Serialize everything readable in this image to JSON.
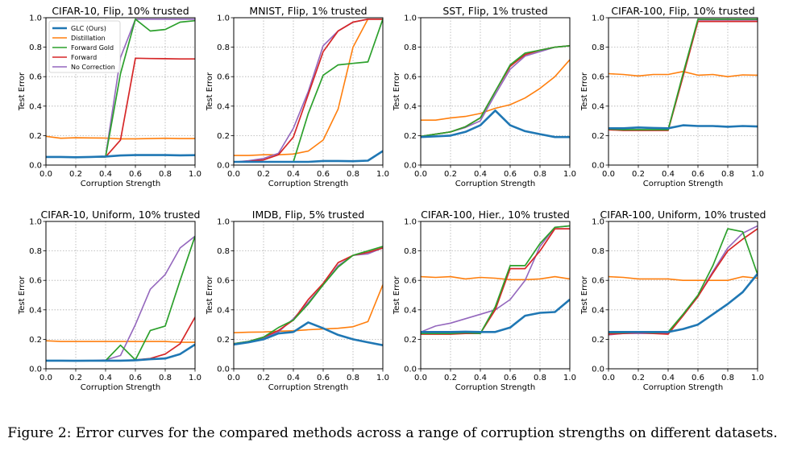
{
  "caption": "Figure 2: Error curves for the compared methods across a range of corruption strengths on different datasets.",
  "colors": {
    "GLC": "#1f77b4",
    "Distillation": "#ff7f0e",
    "ForwardGold": "#2ca02c",
    "Forward": "#d62728",
    "NoCorrection": "#9467bd"
  },
  "chart_data": [
    {
      "type": "line",
      "title": "CIFAR-10, Flip, 10% trusted",
      "xlabel": "Corruption Strength",
      "ylabel": "Test Error",
      "xlim": [
        0,
        1
      ],
      "ylim": [
        0,
        1
      ],
      "grid": true,
      "legend": "top-left",
      "x": [
        0,
        0.1,
        0.2,
        0.3,
        0.4,
        0.5,
        0.6,
        0.7,
        0.8,
        0.9,
        1.0
      ],
      "series": [
        {
          "name": "GLC (Ours)",
          "values": [
            0.055,
            0.055,
            0.053,
            0.055,
            0.058,
            0.065,
            0.068,
            0.068,
            0.068,
            0.066,
            0.067
          ]
        },
        {
          "name": "Distillation",
          "values": [
            0.195,
            0.182,
            0.185,
            0.184,
            0.183,
            0.178,
            0.178,
            0.18,
            0.182,
            0.18,
            0.18
          ]
        },
        {
          "name": "Forward Gold",
          "values": [
            0.055,
            0.055,
            0.054,
            0.055,
            0.055,
            0.62,
            0.99,
            0.91,
            0.92,
            0.97,
            0.98
          ]
        },
        {
          "name": "Forward",
          "values": [
            0.055,
            0.055,
            0.054,
            0.055,
            0.055,
            0.17,
            0.725,
            0.723,
            0.722,
            0.72,
            0.72
          ]
        },
        {
          "name": "No Correction",
          "values": [
            0.055,
            0.055,
            0.054,
            0.055,
            0.06,
            0.73,
            0.99,
            0.99,
            0.99,
            0.99,
            0.99
          ]
        }
      ]
    },
    {
      "type": "line",
      "title": "MNIST, Flip, 1% trusted",
      "xlabel": "Corruption Strength",
      "ylabel": "Test Error",
      "xlim": [
        0,
        1
      ],
      "ylim": [
        0,
        1
      ],
      "grid": true,
      "x": [
        0,
        0.1,
        0.2,
        0.3,
        0.4,
        0.5,
        0.6,
        0.7,
        0.8,
        0.9,
        1.0
      ],
      "series": [
        {
          "name": "GLC (Ours)",
          "values": [
            0.022,
            0.022,
            0.022,
            0.022,
            0.022,
            0.022,
            0.028,
            0.028,
            0.026,
            0.03,
            0.095
          ]
        },
        {
          "name": "Distillation",
          "values": [
            0.065,
            0.065,
            0.07,
            0.07,
            0.075,
            0.095,
            0.17,
            0.38,
            0.8,
            0.99,
            0.99
          ]
        },
        {
          "name": "Forward Gold",
          "values": [
            0.022,
            0.022,
            0.022,
            0.022,
            0.022,
            0.35,
            0.61,
            0.68,
            0.69,
            0.7,
            0.99
          ]
        },
        {
          "name": "Forward",
          "values": [
            0.02,
            0.025,
            0.035,
            0.07,
            0.19,
            0.48,
            0.77,
            0.91,
            0.97,
            0.99,
            0.99
          ]
        },
        {
          "name": "No Correction",
          "values": [
            0.02,
            0.03,
            0.045,
            0.08,
            0.25,
            0.5,
            0.81,
            0.91,
            0.97,
            0.99,
            0.99
          ]
        }
      ]
    },
    {
      "type": "line",
      "title": "SST, Flip, 1% trusted",
      "xlabel": "Corruption Strength",
      "ylabel": "Test Error",
      "xlim": [
        0,
        1
      ],
      "ylim": [
        0,
        1
      ],
      "grid": true,
      "x": [
        0,
        0.1,
        0.2,
        0.3,
        0.4,
        0.5,
        0.6,
        0.7,
        0.8,
        0.9,
        1.0
      ],
      "series": [
        {
          "name": "GLC (Ours)",
          "values": [
            0.19,
            0.195,
            0.2,
            0.225,
            0.27,
            0.37,
            0.27,
            0.23,
            0.21,
            0.19,
            0.19
          ]
        },
        {
          "name": "Distillation",
          "values": [
            0.305,
            0.305,
            0.32,
            0.33,
            0.35,
            0.385,
            0.41,
            0.455,
            0.52,
            0.6,
            0.715
          ]
        },
        {
          "name": "Forward Gold",
          "values": [
            0.195,
            0.21,
            0.225,
            0.26,
            0.32,
            0.5,
            0.68,
            0.76,
            0.78,
            0.8,
            0.81
          ]
        },
        {
          "name": "Forward",
          "values": [
            0.195,
            0.21,
            0.225,
            0.26,
            0.32,
            0.5,
            0.67,
            0.75,
            0.78,
            0.8,
            0.81
          ]
        },
        {
          "name": "No Correction",
          "values": [
            0.195,
            0.21,
            0.225,
            0.255,
            0.3,
            0.48,
            0.65,
            0.74,
            0.77,
            0.8,
            0.81
          ]
        }
      ]
    },
    {
      "type": "line",
      "title": "CIFAR-100, Flip, 10% trusted",
      "xlabel": "Corruption Strength",
      "ylabel": "Test Error",
      "xlim": [
        0,
        1
      ],
      "ylim": [
        0,
        1
      ],
      "grid": true,
      "x": [
        0,
        0.1,
        0.2,
        0.3,
        0.4,
        0.5,
        0.6,
        0.7,
        0.8,
        0.9,
        1.0
      ],
      "series": [
        {
          "name": "GLC (Ours)",
          "values": [
            0.25,
            0.25,
            0.255,
            0.252,
            0.25,
            0.27,
            0.265,
            0.265,
            0.26,
            0.265,
            0.262
          ]
        },
        {
          "name": "Distillation",
          "values": [
            0.62,
            0.615,
            0.605,
            0.615,
            0.615,
            0.635,
            0.61,
            0.615,
            0.6,
            0.612,
            0.61
          ]
        },
        {
          "name": "Forward Gold",
          "values": [
            0.245,
            0.24,
            0.24,
            0.24,
            0.24,
            0.62,
            0.99,
            0.99,
            0.99,
            0.99,
            0.99
          ]
        },
        {
          "name": "Forward",
          "values": [
            0.24,
            0.235,
            0.235,
            0.235,
            0.235,
            0.6,
            0.975,
            0.975,
            0.975,
            0.975,
            0.975
          ]
        },
        {
          "name": "No Correction",
          "values": [
            0.24,
            0.24,
            0.24,
            0.24,
            0.24,
            0.61,
            0.985,
            0.985,
            0.985,
            0.985,
            0.985
          ]
        }
      ]
    },
    {
      "type": "line",
      "title": "CIFAR-10, Uniform, 10% trusted",
      "xlabel": "Corruption Strength",
      "ylabel": "Test Error",
      "xlim": [
        0,
        1
      ],
      "ylim": [
        0,
        1
      ],
      "grid": true,
      "x": [
        0,
        0.1,
        0.2,
        0.3,
        0.4,
        0.5,
        0.6,
        0.7,
        0.8,
        0.9,
        1.0
      ],
      "series": [
        {
          "name": "GLC (Ours)",
          "values": [
            0.055,
            0.055,
            0.054,
            0.055,
            0.055,
            0.055,
            0.058,
            0.065,
            0.07,
            0.1,
            0.165
          ]
        },
        {
          "name": "Distillation",
          "values": [
            0.19,
            0.185,
            0.185,
            0.185,
            0.185,
            0.185,
            0.185,
            0.185,
            0.185,
            0.18,
            0.18
          ]
        },
        {
          "name": "Forward Gold",
          "values": [
            0.055,
            0.055,
            0.054,
            0.055,
            0.055,
            0.16,
            0.06,
            0.26,
            0.29,
            0.6,
            0.9
          ]
        },
        {
          "name": "Forward",
          "values": [
            0.055,
            0.055,
            0.054,
            0.055,
            0.055,
            0.055,
            0.06,
            0.07,
            0.1,
            0.17,
            0.35
          ]
        },
        {
          "name": "No Correction",
          "values": [
            0.055,
            0.055,
            0.054,
            0.055,
            0.06,
            0.09,
            0.3,
            0.54,
            0.64,
            0.82,
            0.9
          ]
        }
      ]
    },
    {
      "type": "line",
      "title": "IMDB, Flip, 5% trusted",
      "xlabel": "Corruption Strength",
      "ylabel": "Test Error",
      "xlim": [
        0,
        1
      ],
      "ylim": [
        0,
        1
      ],
      "grid": true,
      "x": [
        0,
        0.1,
        0.2,
        0.3,
        0.4,
        0.5,
        0.6,
        0.7,
        0.8,
        0.9,
        1.0
      ],
      "series": [
        {
          "name": "GLC (Ours)",
          "values": [
            0.165,
            0.18,
            0.2,
            0.24,
            0.25,
            0.315,
            0.275,
            0.23,
            0.2,
            0.18,
            0.16
          ]
        },
        {
          "name": "Distillation",
          "values": [
            0.245,
            0.248,
            0.25,
            0.255,
            0.258,
            0.265,
            0.27,
            0.275,
            0.285,
            0.32,
            0.57
          ]
        },
        {
          "name": "Forward Gold",
          "values": [
            0.17,
            0.185,
            0.215,
            0.28,
            0.33,
            0.44,
            0.57,
            0.69,
            0.77,
            0.8,
            0.83
          ]
        },
        {
          "name": "Forward",
          "values": [
            0.17,
            0.185,
            0.215,
            0.26,
            0.33,
            0.47,
            0.58,
            0.72,
            0.77,
            0.79,
            0.82
          ]
        },
        {
          "name": "No Correction",
          "values": [
            0.17,
            0.185,
            0.21,
            0.25,
            0.34,
            0.45,
            0.57,
            0.7,
            0.77,
            0.78,
            0.82
          ]
        }
      ]
    },
    {
      "type": "line",
      "title": "CIFAR-100, Hier., 10% trusted",
      "xlabel": "Corruption Strength",
      "ylabel": "Test Error",
      "xlim": [
        0,
        1
      ],
      "ylim": [
        0,
        1
      ],
      "grid": true,
      "x": [
        0,
        0.1,
        0.2,
        0.3,
        0.4,
        0.5,
        0.6,
        0.7,
        0.8,
        0.9,
        1.0
      ],
      "series": [
        {
          "name": "GLC (Ours)",
          "values": [
            0.25,
            0.25,
            0.25,
            0.252,
            0.25,
            0.25,
            0.28,
            0.36,
            0.38,
            0.385,
            0.47
          ]
        },
        {
          "name": "Distillation",
          "values": [
            0.625,
            0.62,
            0.625,
            0.61,
            0.62,
            0.615,
            0.605,
            0.605,
            0.61,
            0.625,
            0.61
          ]
        },
        {
          "name": "Forward Gold",
          "values": [
            0.24,
            0.24,
            0.24,
            0.245,
            0.24,
            0.42,
            0.7,
            0.7,
            0.85,
            0.96,
            0.97
          ]
        },
        {
          "name": "Forward",
          "values": [
            0.235,
            0.235,
            0.235,
            0.24,
            0.24,
            0.4,
            0.68,
            0.68,
            0.8,
            0.95,
            0.95
          ]
        },
        {
          "name": "No Correction",
          "values": [
            0.25,
            0.29,
            0.31,
            0.34,
            0.37,
            0.4,
            0.47,
            0.6,
            0.83,
            0.96,
            0.97
          ]
        }
      ]
    },
    {
      "type": "line",
      "title": "CIFAR-100, Uniform, 10% trusted",
      "xlabel": "Corruption Strength",
      "ylabel": "Test Error",
      "xlim": [
        0,
        1
      ],
      "ylim": [
        0,
        1
      ],
      "grid": true,
      "x": [
        0,
        0.1,
        0.2,
        0.3,
        0.4,
        0.5,
        0.6,
        0.7,
        0.8,
        0.9,
        1.0
      ],
      "series": [
        {
          "name": "GLC (Ours)",
          "values": [
            0.25,
            0.25,
            0.25,
            0.25,
            0.25,
            0.27,
            0.3,
            0.37,
            0.44,
            0.52,
            0.645
          ]
        },
        {
          "name": "Distillation",
          "values": [
            0.625,
            0.62,
            0.61,
            0.61,
            0.61,
            0.6,
            0.6,
            0.6,
            0.6,
            0.625,
            0.615
          ]
        },
        {
          "name": "Forward Gold",
          "values": [
            0.245,
            0.245,
            0.25,
            0.245,
            0.25,
            0.37,
            0.5,
            0.7,
            0.95,
            0.93,
            0.64
          ]
        },
        {
          "name": "Forward",
          "values": [
            0.235,
            0.24,
            0.245,
            0.24,
            0.235,
            0.36,
            0.49,
            0.65,
            0.8,
            0.88,
            0.95
          ]
        },
        {
          "name": "No Correction",
          "values": [
            0.23,
            0.24,
            0.24,
            0.24,
            0.24,
            0.36,
            0.49,
            0.66,
            0.82,
            0.92,
            0.97
          ]
        }
      ]
    }
  ]
}
